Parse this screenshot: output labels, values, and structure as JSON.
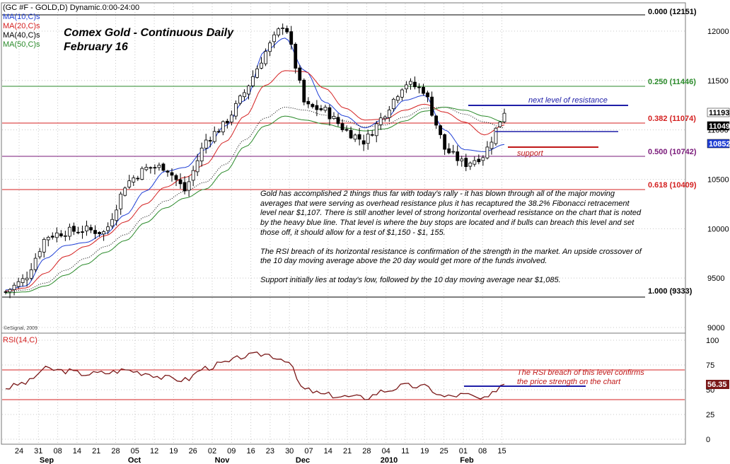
{
  "header": {
    "symbol": "(GC #F - GOLD,D) Dynamic.0:00-24:00",
    "ma_legend": [
      {
        "label": "MA(10,C)s",
        "color": "#1f3fd6"
      },
      {
        "label": "MA(20,C)s",
        "color": "#d42020"
      },
      {
        "label": "MA(40,C)s",
        "color": "#000000"
      },
      {
        "label": "MA(50,C)s",
        "color": "#2a8a2a"
      }
    ],
    "title_line1": "Comex Gold - Continuous Daily",
    "title_line2": "February 16",
    "watermark": "©eSignal, 2009"
  },
  "fib_levels": [
    {
      "label": "0.000 (12151)",
      "value": 12151,
      "color": "#000000"
    },
    {
      "label": "0.250 (11446)",
      "value": 11446,
      "color": "#2a8a2a"
    },
    {
      "label": "0.382 (11074)",
      "value": 11074,
      "color": "#d42020"
    },
    {
      "label": "0.500 (10742)",
      "value": 10742,
      "color": "#7a1a7a"
    },
    {
      "label": "0.618 (10409)",
      "value": 10409,
      "color": "#d42020"
    },
    {
      "label": "1.000 (9333)",
      "value": 9333,
      "color": "#000000"
    }
  ],
  "annotations": {
    "resistance": "next level of resistance",
    "support": "support",
    "rsi_note_line1": "The RSI breach of this level confirms",
    "rsi_note_line2": "the price strength on the chart"
  },
  "commentary": {
    "p1": "Gold has accomplished 2 things thus far with today's rally - it has blown through all of the major moving averages that were serving as overhead resistance plus it has recaptured the 38.2% Fibonacci retracement level near $1,107. There is still another level of strong horizontal overhead resistance on the chart that is noted by the heavy blue line. That level is where the buy stops are located and if bulls can breach this level and set those off, it should allow for a test of $1,150 - $1, 155.",
    "p2": "The RSI breach of its horizontal resistance is confirmation of the strength in the market. An upside crossover of the 10 day moving average above the 20 day would get more of the funds involved.",
    "p3": "Support initially lies at today's low, followed by the 10 day moving average near $1,085."
  },
  "price_axis": {
    "ticks": [
      "12000",
      "11500",
      "11000",
      "10500",
      "10000",
      "9500",
      "9000"
    ],
    "current_labels": [
      {
        "text": "11193",
        "bg": "#ffffff",
        "fg": "#000000"
      },
      {
        "text": "11049",
        "bg": "#000000",
        "fg": "#ffffff"
      },
      {
        "text": "10852",
        "bg": "#1f3fd6",
        "fg": "#ffffff"
      }
    ]
  },
  "rsi": {
    "label": "RSI(14,C)",
    "ticks": [
      "100",
      "75",
      "50",
      "25",
      "0"
    ],
    "current": "56.35",
    "upper_level": 70,
    "lower_level": 40,
    "breach_level": 55
  },
  "x_axis": {
    "dates": [
      "24",
      "31",
      "08",
      "14",
      "21",
      "28",
      "05",
      "12",
      "19",
      "26",
      "02",
      "09",
      "16",
      "23",
      "30",
      "07",
      "14",
      "21",
      "28",
      "04",
      "11",
      "19",
      "25",
      "01",
      "08",
      "15"
    ],
    "months": [
      "Sep",
      "Oct",
      "Nov",
      "Dec",
      "2010",
      "Feb"
    ]
  },
  "chart_data": {
    "type": "candlestick",
    "title": "Comex Gold - Continuous Daily",
    "subtitle": "February 16",
    "ylim": [
      9000,
      12250
    ],
    "series": [
      {
        "name": "MA(10,C)s",
        "values": [
          9380,
          9420,
          9700,
          9830,
          9860,
          9950,
          10140,
          10380,
          10580,
          10620,
          10800,
          11040,
          11300,
          11800,
          11930,
          11600,
          11280,
          11140,
          11020,
          11110,
          11300,
          11350,
          11000,
          10800,
          10780,
          10852
        ]
      },
      {
        "name": "MA(20,C)s",
        "values": [
          9370,
          9400,
          9550,
          9720,
          9820,
          9930,
          10070,
          10250,
          10420,
          10520,
          10650,
          10880,
          11140,
          11450,
          11600,
          11590,
          11420,
          11220,
          11100,
          11110,
          11200,
          11260,
          11180,
          11080,
          10950,
          11049
        ]
      },
      {
        "name": "MA(40,C)s",
        "values": [
          9360,
          9380,
          9450,
          9580,
          9700,
          9820,
          9940,
          10120,
          10280,
          10380,
          10470,
          10650,
          10900,
          11120,
          11230,
          11200,
          11150,
          11090,
          11030,
          11050,
          11130,
          11220,
          11230,
          11160,
          11080,
          11020
        ]
      },
      {
        "name": "MA(50,C)s",
        "values": [
          9350,
          9360,
          9420,
          9530,
          9640,
          9760,
          9880,
          10060,
          10210,
          10310,
          10400,
          10580,
          10830,
          11040,
          11140,
          11100,
          11060,
          11020,
          10990,
          11010,
          11090,
          11190,
          11230,
          11200,
          11140,
          11080
        ]
      },
      {
        "name": "Close",
        "values": [
          9360,
          9500,
          9920,
          9970,
          9990,
          9960,
          10450,
          10610,
          10630,
          10380,
          10890,
          11060,
          11390,
          11780,
          12100,
          11240,
          11200,
          11000,
          10880,
          11170,
          11480,
          11400,
          10810,
          10650,
          10750,
          11193
        ]
      }
    ],
    "rsi": [
      52,
      57,
      71,
      69,
      66,
      67,
      70,
      67,
      62,
      60,
      72,
      77,
      84,
      86,
      81,
      50,
      45,
      43,
      42,
      49,
      54,
      53,
      43,
      45,
      40,
      56.35
    ]
  }
}
